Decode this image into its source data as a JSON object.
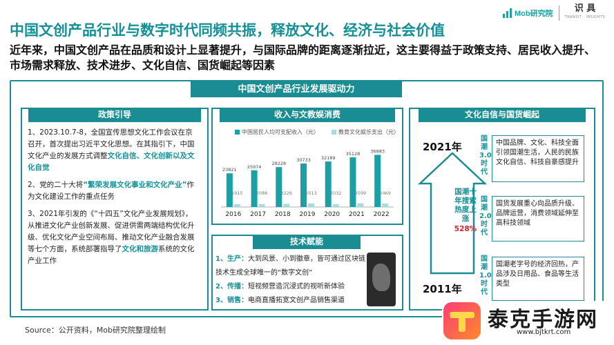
{
  "header": {
    "logo_text": "Mob研究院",
    "badge_text": "识 具",
    "badge_sub": "TRANSIT · INSIGHTS",
    "title": "中国文创产品行业与数字时代同频共振，释放文化、经济与社会价值",
    "subtitle": "近年来，中国文创产品在品质和设计上显著提升，与国际品牌的距离逐渐拉近，这主要得益于政策支持、居民收入提升、市场需求释放、技术进步、文化自信、国货崛起等因素",
    "accent_color": "#1a8c93"
  },
  "frame_title": "中国文创产品行业发展驱动力",
  "policy": {
    "heading": "政策引导",
    "p1_a": "1、2023.10.7-8，全国宣传思想文化工作会议在京召开，首次提出习近平文化思想。在其指引下，中国文化产业的发展方式调整",
    "p1_hl": "文化自信、文化创新以及文化自觉",
    "p2_a": "2、党的二十大将",
    "p2_hl": "“繁荣发展文化事业和文化产业”",
    "p2_b": "作为文化建设工作的重点任务",
    "p3_a": "3、2021年引发的《“十四五”文化产业发展规划》，从推进文化产业创新发展、促进供需两端结构优化升级、优化文化产业空间布局、推动文化产业融合发展等七个方面，系统部署指导了",
    "p3_hl": "文化和旅游",
    "p3_b": "系统的文化产业工作"
  },
  "income": {
    "heading": "收入与文教娱消费"
  },
  "chart_data": {
    "type": "bar",
    "title": "",
    "categories": [
      "2016",
      "2017",
      "2018",
      "2019",
      "2020",
      "2021",
      "2022"
    ],
    "series": [
      {
        "name": "中国居民人均可支配收入（元）",
        "values": [
          23821,
          25974,
          28228,
          30733,
          32189,
          35128,
          36883
        ],
        "color": "#1aa0a5"
      },
      {
        "name": "教育文化娱乐支出（元）",
        "values": [
          1915,
          2086,
          2226,
          2513,
          2032,
          2599,
          2469
        ],
        "color": "#a8dcdc"
      }
    ],
    "labels_income": [
      "23821",
      "25974",
      "28228",
      "30733",
      "32189",
      "35128",
      "36883"
    ],
    "labels_spend": [
      "1915",
      "2086",
      "2226",
      "2513",
      "2032",
      "2599",
      "2469"
    ],
    "ylim": [
      0,
      40000
    ],
    "legend_position": "top",
    "grid": false
  },
  "tech": {
    "heading": "技术赋能",
    "items": [
      {
        "label": "1、生产：",
        "text": "大到风景、小到徽章，皆可通过区块链技术生成全球唯一的“数字文创”"
      },
      {
        "label": "2、传播：",
        "text": "短视频营造沉浸式的视听新体验"
      },
      {
        "label": "3、销售：",
        "text": "电商直播拓宽文创产品销售渠道"
      }
    ]
  },
  "culture": {
    "heading": "文化自信与国货崛起",
    "year_top": "2021年",
    "year_bottom": "2011年",
    "arrow_text": "国潮十年搜索热度上涨",
    "arrow_pct": "528%",
    "eras": [
      {
        "label": "国潮3.0时代",
        "text": "中国品牌、文化、科技全面引领国潮生活，人民的民族文化自信、科技自豪感提升"
      },
      {
        "label": "国潮2.0时代",
        "text": "国货发展重心向品质升级、品牌运营，消费领域延伸至高科技领域"
      },
      {
        "label": "国潮1.0时代",
        "text": "国潮老字号的经济回热，产品涉及日用品、食品等生活类型"
      }
    ]
  },
  "source": "Source：公开资料，Mob研究院整理绘制",
  "watermark": {
    "name": "泰克手游网",
    "url": "www.bjtkrt.com"
  }
}
